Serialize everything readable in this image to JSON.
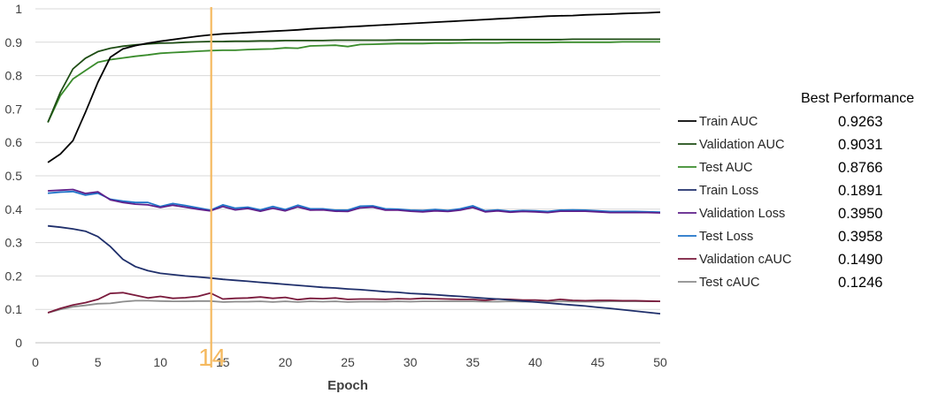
{
  "chart_data": {
    "type": "line",
    "xlabel": "Epoch",
    "ylabel": "",
    "xlim": [
      0,
      50
    ],
    "ylim": [
      0,
      1
    ],
    "xticks": [
      "0",
      "5",
      "10",
      "15",
      "20",
      "25",
      "30",
      "35",
      "40",
      "45",
      "50"
    ],
    "yticks": [
      "0",
      "0.1",
      "0.2",
      "0.3",
      "0.4",
      "0.5",
      "0.6",
      "0.7",
      "0.8",
      "0.9",
      "1"
    ],
    "grid": "horizontal",
    "marker": {
      "x": 14,
      "label": "14",
      "color": "#f5b95f"
    },
    "legend_title": "Best Performance",
    "legend_placement": "right",
    "series": [
      {
        "name": "Train AUC",
        "color": "#000000",
        "best": "0.9263",
        "x": [
          1,
          2,
          3,
          4,
          5,
          6,
          7,
          8,
          9,
          10,
          11,
          12,
          13,
          14,
          15,
          16,
          17,
          18,
          19,
          20,
          21,
          22,
          23,
          24,
          25,
          26,
          27,
          28,
          29,
          30,
          31,
          32,
          33,
          34,
          35,
          36,
          37,
          38,
          39,
          40,
          41,
          42,
          43,
          44,
          45,
          46,
          47,
          48,
          49,
          50
        ],
        "y": [
          0.54,
          0.565,
          0.605,
          0.69,
          0.78,
          0.855,
          0.88,
          0.89,
          0.897,
          0.903,
          0.908,
          0.913,
          0.918,
          0.922,
          0.925,
          0.927,
          0.929,
          0.931,
          0.933,
          0.935,
          0.937,
          0.94,
          0.942,
          0.944,
          0.946,
          0.948,
          0.95,
          0.952,
          0.954,
          0.956,
          0.958,
          0.96,
          0.962,
          0.964,
          0.966,
          0.968,
          0.97,
          0.972,
          0.974,
          0.976,
          0.978,
          0.979,
          0.98,
          0.982,
          0.983,
          0.984,
          0.986,
          0.987,
          0.988,
          0.99
        ]
      },
      {
        "name": "Validation AUC",
        "color": "#1e4d14",
        "best": "0.9031",
        "x": [
          1,
          2,
          3,
          4,
          5,
          6,
          7,
          8,
          9,
          10,
          11,
          12,
          13,
          14,
          15,
          16,
          17,
          18,
          19,
          20,
          21,
          22,
          23,
          24,
          25,
          26,
          27,
          28,
          29,
          30,
          31,
          32,
          33,
          34,
          35,
          36,
          37,
          38,
          39,
          40,
          41,
          42,
          43,
          44,
          45,
          46,
          47,
          48,
          49,
          50
        ],
        "y": [
          0.66,
          0.75,
          0.82,
          0.852,
          0.872,
          0.882,
          0.888,
          0.892,
          0.895,
          0.897,
          0.898,
          0.9,
          0.901,
          0.902,
          0.902,
          0.903,
          0.903,
          0.904,
          0.904,
          0.905,
          0.905,
          0.905,
          0.905,
          0.906,
          0.906,
          0.906,
          0.906,
          0.906,
          0.907,
          0.907,
          0.907,
          0.907,
          0.907,
          0.907,
          0.908,
          0.908,
          0.908,
          0.908,
          0.908,
          0.908,
          0.908,
          0.908,
          0.909,
          0.909,
          0.909,
          0.909,
          0.909,
          0.909,
          0.909,
          0.909
        ]
      },
      {
        "name": "Test AUC",
        "color": "#3a8c2c",
        "best": "0.8766",
        "x": [
          1,
          2,
          3,
          4,
          5,
          6,
          7,
          8,
          9,
          10,
          11,
          12,
          13,
          14,
          15,
          16,
          17,
          18,
          19,
          20,
          21,
          22,
          23,
          24,
          25,
          26,
          27,
          28,
          29,
          30,
          31,
          32,
          33,
          34,
          35,
          36,
          37,
          38,
          39,
          40,
          41,
          42,
          43,
          44,
          45,
          46,
          47,
          48,
          49,
          50
        ],
        "y": [
          0.66,
          0.74,
          0.79,
          0.815,
          0.84,
          0.848,
          0.853,
          0.858,
          0.862,
          0.867,
          0.869,
          0.871,
          0.873,
          0.875,
          0.876,
          0.876,
          0.878,
          0.879,
          0.88,
          0.883,
          0.882,
          0.889,
          0.89,
          0.891,
          0.887,
          0.893,
          0.894,
          0.895,
          0.896,
          0.896,
          0.896,
          0.897,
          0.897,
          0.898,
          0.898,
          0.898,
          0.898,
          0.899,
          0.899,
          0.899,
          0.899,
          0.9,
          0.9,
          0.9,
          0.9,
          0.9,
          0.901,
          0.901,
          0.901,
          0.901
        ]
      },
      {
        "name": "Train Loss",
        "color": "#1f2f6b",
        "best": "0.1891",
        "x": [
          1,
          2,
          3,
          4,
          5,
          6,
          7,
          8,
          9,
          10,
          11,
          12,
          13,
          14,
          15,
          16,
          17,
          18,
          19,
          20,
          21,
          22,
          23,
          24,
          25,
          26,
          27,
          28,
          29,
          30,
          31,
          32,
          33,
          34,
          35,
          36,
          37,
          38,
          39,
          40,
          41,
          42,
          43,
          44,
          45,
          46,
          47,
          48,
          49,
          50
        ],
        "y": [
          0.35,
          0.346,
          0.341,
          0.334,
          0.318,
          0.288,
          0.25,
          0.228,
          0.216,
          0.208,
          0.204,
          0.2,
          0.197,
          0.194,
          0.19,
          0.187,
          0.184,
          0.181,
          0.178,
          0.175,
          0.172,
          0.169,
          0.166,
          0.164,
          0.161,
          0.159,
          0.156,
          0.153,
          0.151,
          0.148,
          0.146,
          0.144,
          0.141,
          0.139,
          0.136,
          0.133,
          0.131,
          0.128,
          0.125,
          0.122,
          0.119,
          0.116,
          0.113,
          0.11,
          0.106,
          0.103,
          0.099,
          0.095,
          0.091,
          0.087
        ]
      },
      {
        "name": "Validation Loss",
        "color": "#5e1f8a",
        "best": "0.3950",
        "x": [
          1,
          2,
          3,
          4,
          5,
          6,
          7,
          8,
          9,
          10,
          11,
          12,
          13,
          14,
          15,
          16,
          17,
          18,
          19,
          20,
          21,
          22,
          23,
          24,
          25,
          26,
          27,
          28,
          29,
          30,
          31,
          32,
          33,
          34,
          35,
          36,
          37,
          38,
          39,
          40,
          41,
          42,
          43,
          44,
          45,
          46,
          47,
          48,
          49,
          50
        ],
        "y": [
          0.455,
          0.457,
          0.459,
          0.447,
          0.452,
          0.428,
          0.42,
          0.415,
          0.413,
          0.405,
          0.412,
          0.406,
          0.4,
          0.395,
          0.408,
          0.398,
          0.402,
          0.394,
          0.403,
          0.395,
          0.407,
          0.397,
          0.398,
          0.394,
          0.393,
          0.404,
          0.406,
          0.397,
          0.397,
          0.394,
          0.392,
          0.395,
          0.393,
          0.397,
          0.405,
          0.392,
          0.395,
          0.391,
          0.393,
          0.392,
          0.39,
          0.394,
          0.394,
          0.394,
          0.392,
          0.39,
          0.39,
          0.39,
          0.39,
          0.389
        ]
      },
      {
        "name": "Test Loss",
        "color": "#1e73c8",
        "best": "0.3958",
        "x": [
          1,
          2,
          3,
          4,
          5,
          6,
          7,
          8,
          9,
          10,
          11,
          12,
          13,
          14,
          15,
          16,
          17,
          18,
          19,
          20,
          21,
          22,
          23,
          24,
          25,
          26,
          27,
          28,
          29,
          30,
          31,
          32,
          33,
          34,
          35,
          36,
          37,
          38,
          39,
          40,
          41,
          42,
          43,
          44,
          45,
          46,
          47,
          48,
          49,
          50
        ],
        "y": [
          0.448,
          0.451,
          0.453,
          0.442,
          0.448,
          0.43,
          0.424,
          0.42,
          0.42,
          0.408,
          0.417,
          0.411,
          0.404,
          0.397,
          0.413,
          0.403,
          0.406,
          0.398,
          0.408,
          0.399,
          0.412,
          0.401,
          0.401,
          0.397,
          0.397,
          0.409,
          0.41,
          0.401,
          0.4,
          0.397,
          0.396,
          0.399,
          0.396,
          0.401,
          0.41,
          0.395,
          0.398,
          0.394,
          0.396,
          0.395,
          0.393,
          0.397,
          0.398,
          0.397,
          0.395,
          0.393,
          0.393,
          0.393,
          0.392,
          0.391
        ]
      },
      {
        "name": "Validation cAUC",
        "color": "#7a1a3c",
        "best": "0.1490",
        "x": [
          1,
          2,
          3,
          4,
          5,
          6,
          7,
          8,
          9,
          10,
          11,
          12,
          13,
          14,
          15,
          16,
          17,
          18,
          19,
          20,
          21,
          22,
          23,
          24,
          25,
          26,
          27,
          28,
          29,
          30,
          31,
          32,
          33,
          34,
          35,
          36,
          37,
          38,
          39,
          40,
          41,
          42,
          43,
          44,
          45,
          46,
          47,
          48,
          49,
          50
        ],
        "y": [
          0.09,
          0.103,
          0.113,
          0.12,
          0.13,
          0.148,
          0.15,
          0.142,
          0.134,
          0.139,
          0.133,
          0.135,
          0.139,
          0.149,
          0.131,
          0.133,
          0.134,
          0.137,
          0.133,
          0.136,
          0.129,
          0.133,
          0.132,
          0.134,
          0.13,
          0.131,
          0.131,
          0.13,
          0.132,
          0.131,
          0.133,
          0.132,
          0.131,
          0.13,
          0.13,
          0.127,
          0.131,
          0.13,
          0.128,
          0.128,
          0.126,
          0.13,
          0.127,
          0.126,
          0.127,
          0.127,
          0.126,
          0.126,
          0.125,
          0.124
        ]
      },
      {
        "name": "Test cAUC",
        "color": "#8c8c8c",
        "best": "0.1246",
        "x": [
          1,
          2,
          3,
          4,
          5,
          6,
          7,
          8,
          9,
          10,
          11,
          12,
          13,
          14,
          15,
          16,
          17,
          18,
          19,
          20,
          21,
          22,
          23,
          24,
          25,
          26,
          27,
          28,
          29,
          30,
          31,
          32,
          33,
          34,
          35,
          36,
          37,
          38,
          39,
          40,
          41,
          42,
          43,
          44,
          45,
          46,
          47,
          48,
          49,
          50
        ],
        "y": [
          0.09,
          0.1,
          0.108,
          0.112,
          0.117,
          0.118,
          0.123,
          0.126,
          0.126,
          0.125,
          0.124,
          0.124,
          0.125,
          0.125,
          0.122,
          0.123,
          0.123,
          0.124,
          0.122,
          0.124,
          0.122,
          0.124,
          0.123,
          0.124,
          0.122,
          0.123,
          0.123,
          0.123,
          0.124,
          0.123,
          0.124,
          0.124,
          0.124,
          0.124,
          0.124,
          0.123,
          0.123,
          0.124,
          0.123,
          0.123,
          0.123,
          0.124,
          0.123,
          0.123,
          0.123,
          0.124,
          0.124,
          0.124,
          0.124,
          0.124
        ]
      }
    ]
  }
}
